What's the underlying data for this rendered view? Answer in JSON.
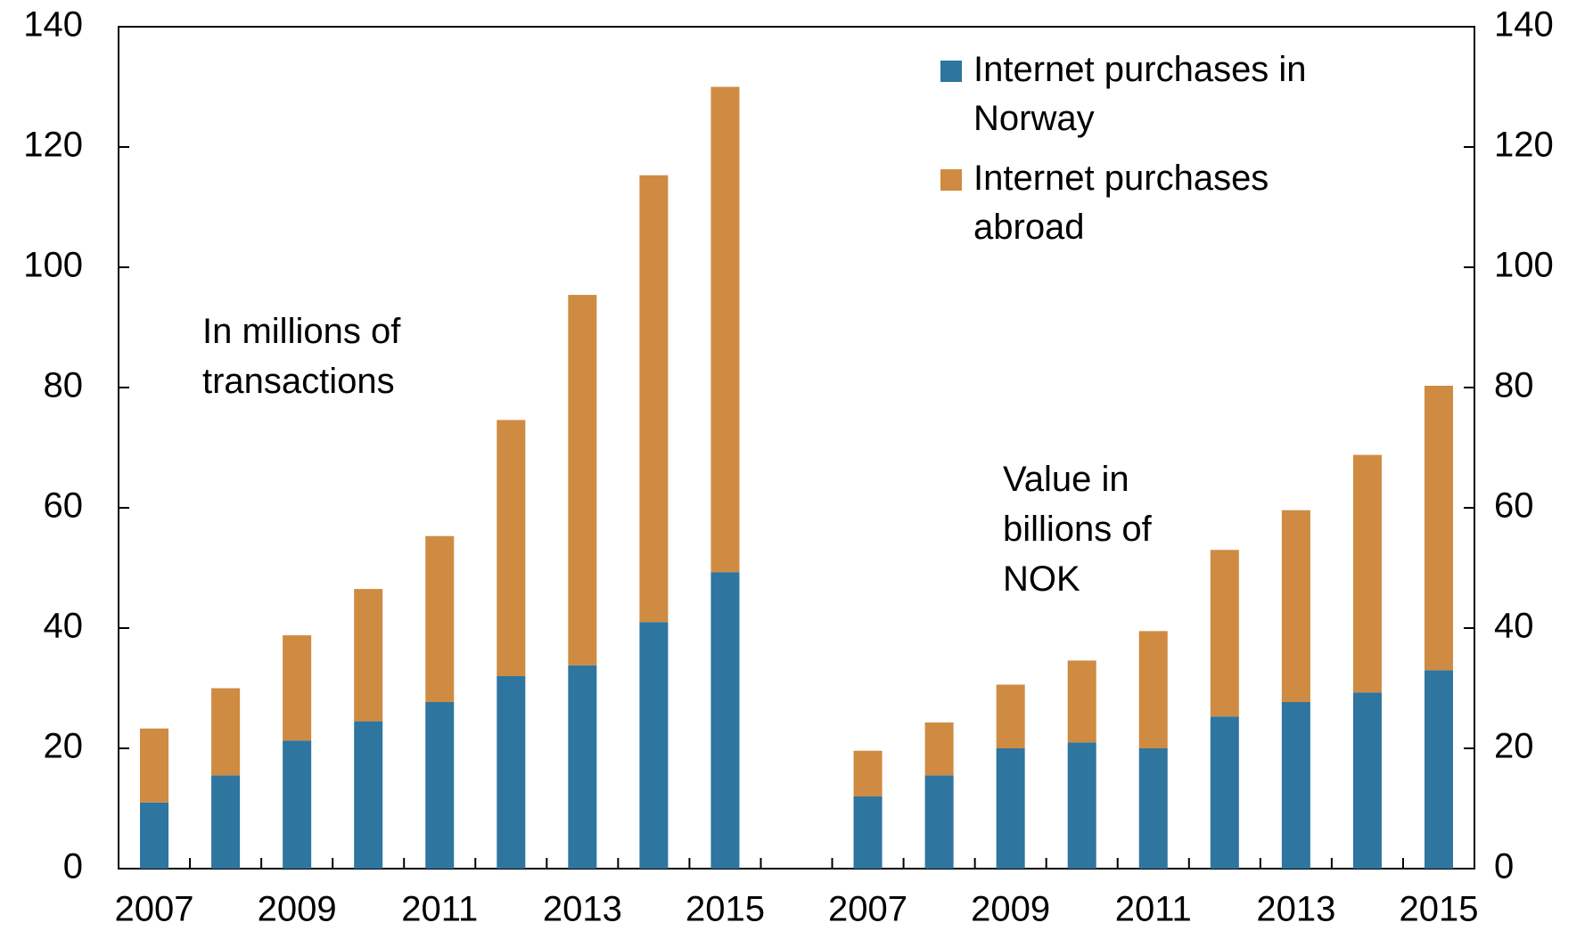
{
  "chart_data": {
    "type": "bar",
    "stacked": true,
    "categories": [
      "2007",
      null,
      "2009",
      null,
      "2011",
      null,
      "2013",
      null,
      "2015",
      null,
      "2007",
      null,
      "2009",
      null,
      "2011",
      null,
      "2013",
      null,
      "2015"
    ],
    "series": [
      {
        "name": "Internet purchases in Norway",
        "color": "#2e759f",
        "values": [
          11,
          15.5,
          21.3,
          24.5,
          27.7,
          32,
          33.8,
          41,
          49.3,
          null,
          12,
          15.5,
          20,
          21,
          20,
          25.3,
          27.7,
          29.3,
          33
        ]
      },
      {
        "name": "Internet purchases abroad",
        "color": "#cf8b42",
        "values": [
          12.3,
          14.5,
          17.5,
          22,
          27.6,
          42.6,
          61.6,
          74.3,
          80.7,
          null,
          7.6,
          8.8,
          10.6,
          13.6,
          19.5,
          27.7,
          31.9,
          39.5,
          47.3
        ]
      }
    ],
    "ylim": [
      0,
      140
    ],
    "yticks": [
      0,
      20,
      40,
      60,
      80,
      100,
      120,
      140
    ],
    "y2lim": [
      0,
      140
    ],
    "y2ticks": [
      0,
      20,
      40,
      60,
      80,
      100,
      120,
      140
    ],
    "annotations": [
      "In millions of transactions",
      "Value in billions of NOK"
    ],
    "legend": "top-right",
    "grid": false
  }
}
